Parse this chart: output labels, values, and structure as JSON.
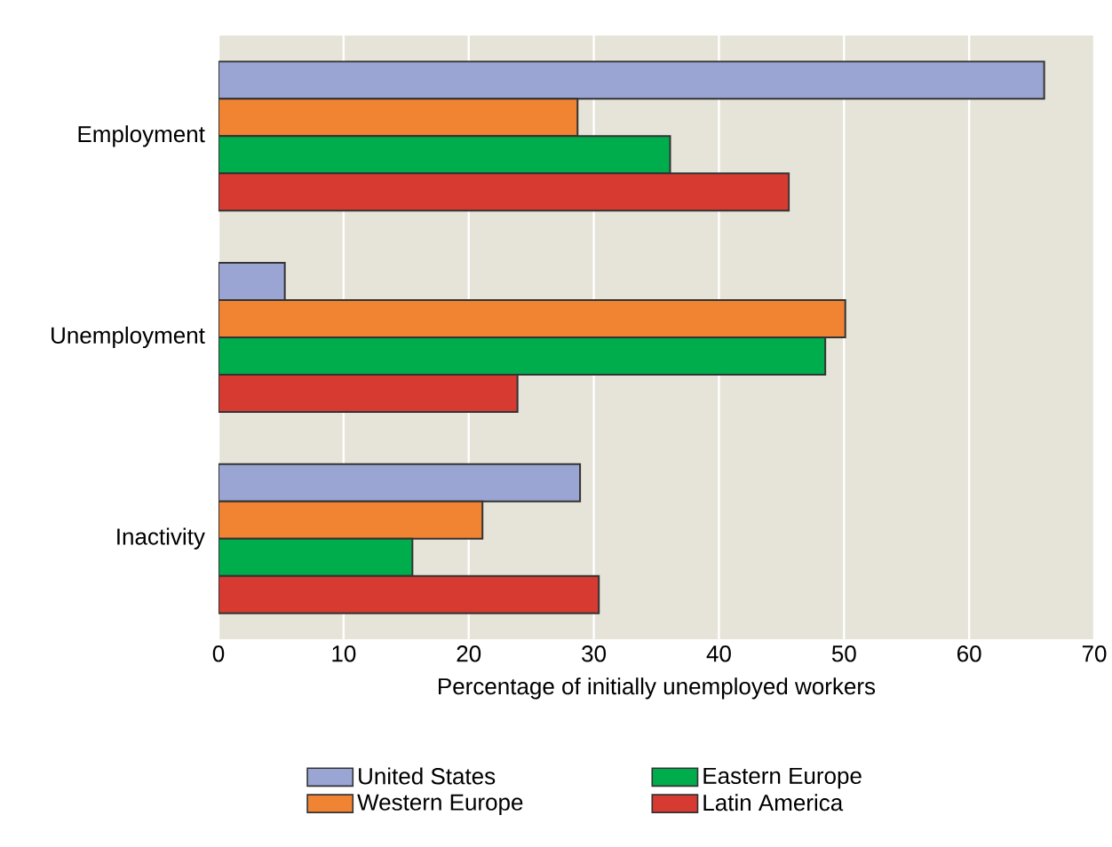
{
  "chart_data": {
    "type": "bar",
    "orientation": "horizontal",
    "categories": [
      "Employment",
      "Unemployment",
      "Inactivity"
    ],
    "series": [
      {
        "name": "United States",
        "color": "#9aa5d3",
        "values": [
          66,
          5.3,
          28.9
        ]
      },
      {
        "name": "Western Europe",
        "color": "#f08433",
        "values": [
          28.7,
          50.1,
          21.1
        ]
      },
      {
        "name": "Eastern Europe",
        "color": "#00ad4d",
        "values": [
          36.1,
          48.5,
          15.5
        ]
      },
      {
        "name": "Latin America",
        "color": "#d63a30",
        "values": [
          45.6,
          23.9,
          30.4
        ]
      }
    ],
    "xlim": [
      0,
      70
    ],
    "xticks": [
      0,
      10,
      20,
      30,
      40,
      50,
      60,
      70
    ],
    "xlabel": "Percentage of initially unemployed workers",
    "grid": "x",
    "legend": "bottom"
  }
}
